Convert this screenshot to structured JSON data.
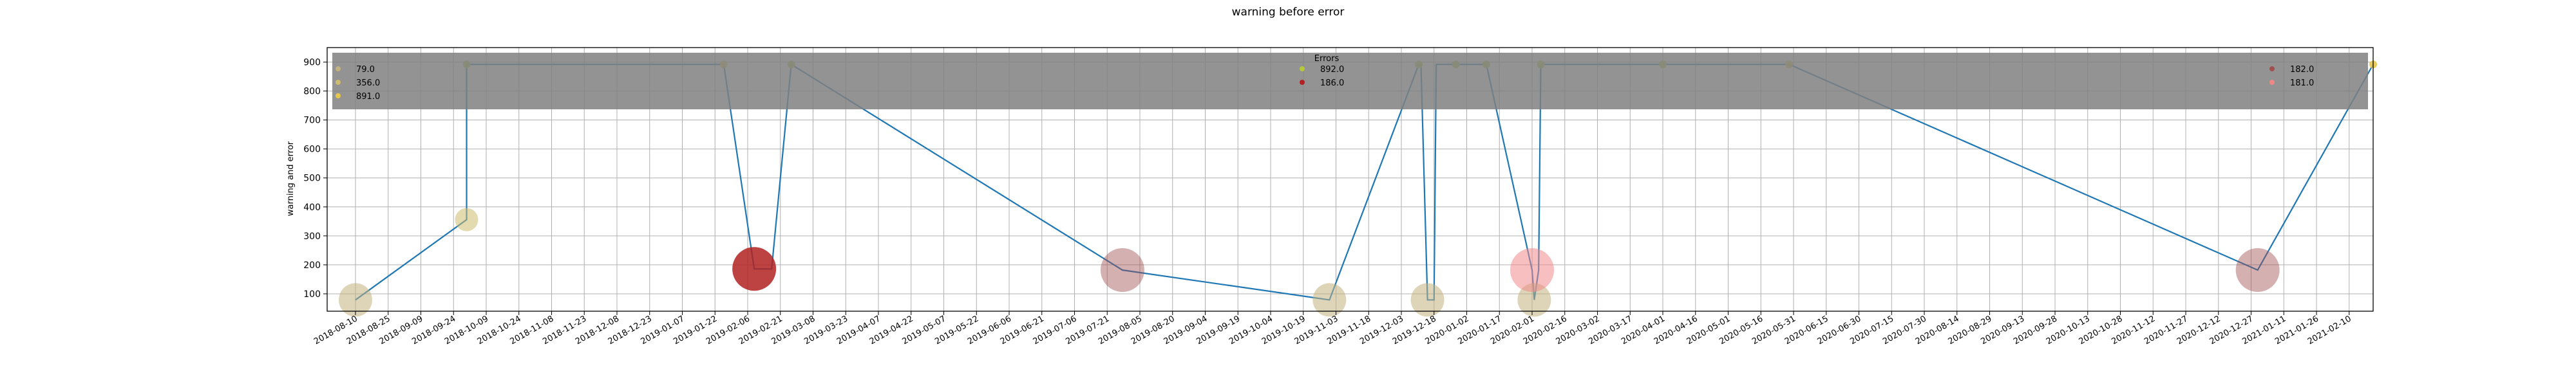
{
  "chart_data": {
    "type": "scatter",
    "title": "warning before error",
    "xlabel": "",
    "ylabel": "warning and error",
    "x_is_date": true,
    "xlim": [
      "2018-07-28",
      "2021-02-21"
    ],
    "ylim": [
      40,
      950
    ],
    "yticks": [
      100,
      200,
      300,
      400,
      500,
      600,
      700,
      800,
      900
    ],
    "xticks": [
      "2018-08-10",
      "2018-08-25",
      "2018-09-09",
      "2018-09-24",
      "2018-10-09",
      "2018-10-24",
      "2018-11-08",
      "2018-11-23",
      "2018-12-08",
      "2018-12-23",
      "2019-01-07",
      "2019-01-22",
      "2019-02-06",
      "2019-02-21",
      "2019-03-08",
      "2019-03-23",
      "2019-04-07",
      "2019-04-22",
      "2019-05-07",
      "2019-05-22",
      "2019-06-06",
      "2019-06-21",
      "2019-07-06",
      "2019-07-21",
      "2019-08-05",
      "2019-08-20",
      "2019-09-04",
      "2019-09-19",
      "2019-10-04",
      "2019-10-19",
      "2019-11-03",
      "2019-11-18",
      "2019-12-03",
      "2019-12-18",
      "2020-01-02",
      "2020-01-17",
      "2020-02-01",
      "2020-02-16",
      "2020-03-02",
      "2020-03-17",
      "2020-04-01",
      "2020-04-16",
      "2020-05-01",
      "2020-05-16",
      "2020-05-31",
      "2020-06-15",
      "2020-06-30",
      "2020-07-15",
      "2020-07-30",
      "2020-08-14",
      "2020-08-29",
      "2020-09-13",
      "2020-09-28",
      "2020-10-13",
      "2020-10-28",
      "2020-11-12",
      "2020-11-27",
      "2020-12-12",
      "2020-12-27",
      "2021-01-11",
      "2021-01-26",
      "2021-02-10"
    ],
    "grid": true,
    "line": {
      "color": "#1f77b4",
      "x": [
        "2018-08-10",
        "2018-09-30",
        "2018-09-30",
        "2019-01-26",
        "2019-02-09",
        "2019-02-17",
        "2019-02-26",
        "2019-07-28",
        "2019-10-31",
        "2019-12-11",
        "2019-12-12",
        "2019-12-15",
        "2019-12-18",
        "2019-12-19",
        "2019-12-28",
        "2019-12-30",
        "2020-01-11",
        "2020-02-01",
        "2020-02-02",
        "2020-02-04",
        "2020-02-05",
        "2020-05-29",
        "2020-12-30",
        "2021-02-21"
      ],
      "y": [
        79,
        356,
        892,
        892,
        186,
        186,
        892,
        182,
        79,
        892,
        892,
        79,
        79,
        892,
        892,
        892,
        892,
        182,
        79,
        182,
        892,
        892,
        182,
        892
      ]
    },
    "series": [
      {
        "name": "79.0",
        "color": "#c2b280",
        "alpha": 0.55,
        "points": [
          {
            "x": "2018-08-10",
            "y": 79,
            "size": 3
          },
          {
            "x": "2019-10-31",
            "y": 79,
            "size": 3
          },
          {
            "x": "2019-12-15",
            "y": 79,
            "size": 3
          },
          {
            "x": "2020-02-02",
            "y": 79,
            "size": 3
          }
        ]
      },
      {
        "name": "356.0",
        "color": "#cdbb6e",
        "alpha": 0.55,
        "points": [
          {
            "x": "2018-09-30",
            "y": 356,
            "size": 2
          }
        ]
      },
      {
        "name": "891.0",
        "color": "#e6c84a",
        "alpha": 0.9,
        "points": [
          {
            "x": "2019-01-26",
            "y": 892,
            "size": 1
          },
          {
            "x": "2020-05-29",
            "y": 892,
            "size": 1
          },
          {
            "x": "2021-02-21",
            "y": 892,
            "size": 1
          }
        ]
      },
      {
        "name": "892.0",
        "color": "#b5c83a",
        "alpha": 0.9,
        "points": [
          {
            "x": "2018-09-30",
            "y": 892,
            "size": 1
          },
          {
            "x": "2019-02-26",
            "y": 892,
            "size": 1
          },
          {
            "x": "2019-12-11",
            "y": 892,
            "size": 1
          },
          {
            "x": "2019-12-28",
            "y": 892,
            "size": 1
          },
          {
            "x": "2020-01-11",
            "y": 892,
            "size": 1
          },
          {
            "x": "2020-02-05",
            "y": 892,
            "size": 1
          },
          {
            "x": "2020-04-01",
            "y": 892,
            "size": 1
          }
        ]
      },
      {
        "name": "186.0",
        "color": "#b22222",
        "alpha": 0.85,
        "points": [
          {
            "x": "2019-02-09",
            "y": 186,
            "size": 4
          }
        ]
      },
      {
        "name": "182.0",
        "color": "#a05050",
        "alpha": 0.45,
        "points": [
          {
            "x": "2019-07-28",
            "y": 182,
            "size": 4
          },
          {
            "x": "2020-12-30",
            "y": 182,
            "size": 4
          }
        ]
      },
      {
        "name": "181.0",
        "color": "#f08a8a",
        "alpha": 0.55,
        "points": [
          {
            "x": "2020-02-01",
            "y": 182,
            "size": 4
          }
        ]
      }
    ],
    "legend": {
      "title": "Errors",
      "placement": "upper band",
      "columns": [
        [
          "79.0",
          "356.0",
          "891.0"
        ],
        [
          "892.0",
          "186.0"
        ],
        [
          "182.0",
          "181.0"
        ]
      ]
    }
  }
}
